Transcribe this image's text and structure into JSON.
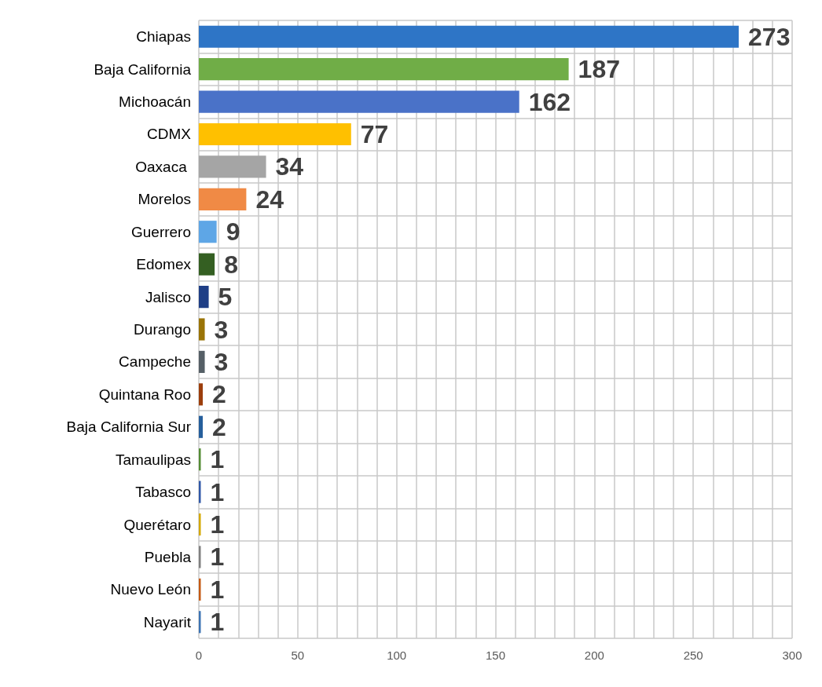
{
  "chart_data": {
    "type": "bar",
    "orientation": "horizontal",
    "categories": [
      "Chiapas",
      "Baja California",
      "Michoacán",
      "CDMX",
      "Oaxaca ",
      "Morelos",
      "Guerrero",
      "Edomex",
      "Jalisco",
      "Durango",
      "Campeche",
      "Quintana Roo",
      "Baja California Sur",
      "Tamaulipas",
      "Tabasco",
      "Querétaro",
      "Puebla",
      "Nuevo León",
      "Nayarit"
    ],
    "values": [
      273,
      187,
      162,
      77,
      34,
      24,
      9,
      8,
      5,
      3,
      3,
      2,
      2,
      1,
      1,
      1,
      1,
      1,
      1
    ],
    "colors": [
      "#2e75c6",
      "#70ad47",
      "#4a72c8",
      "#ffc000",
      "#a5a5a5",
      "#f08a45",
      "#5ea6e6",
      "#345f22",
      "#1f3f86",
      "#9a7406",
      "#555f66",
      "#9c3e0c",
      "#265f9c",
      "#548d35",
      "#3159a8",
      "#d4a800",
      "#808080",
      "#c55a15",
      "#3d74b4"
    ],
    "xlim": [
      0,
      300
    ],
    "xticks": [
      0,
      {
        "value": 10,
        "label": null
      },
      {
        "value": 20,
        "label": null
      },
      {
        "value": 30,
        "label": null
      },
      {
        "value": 40,
        "label": null
      },
      50,
      {
        "value": 60,
        "label": null
      },
      {
        "value": 70,
        "label": null
      },
      {
        "value": 80,
        "label": null
      },
      {
        "value": 90,
        "label": null
      },
      100,
      {
        "value": 110,
        "label": null
      },
      {
        "value": 120,
        "label": null
      },
      {
        "value": 130,
        "label": null
      },
      {
        "value": 140,
        "label": null
      },
      150,
      {
        "value": 160,
        "label": null
      },
      {
        "value": 170,
        "label": null
      },
      {
        "value": 180,
        "label": null
      },
      {
        "value": 190,
        "label": null
      },
      200,
      {
        "value": 210,
        "label": null
      },
      {
        "value": 220,
        "label": null
      },
      {
        "value": 230,
        "label": null
      },
      {
        "value": 240,
        "label": null
      },
      250,
      {
        "value": 260,
        "label": null
      },
      {
        "value": 270,
        "label": null
      },
      {
        "value": 280,
        "label": null
      },
      {
        "value": 290,
        "label": null
      },
      300
    ],
    "data_labels": true,
    "grid": true
  }
}
